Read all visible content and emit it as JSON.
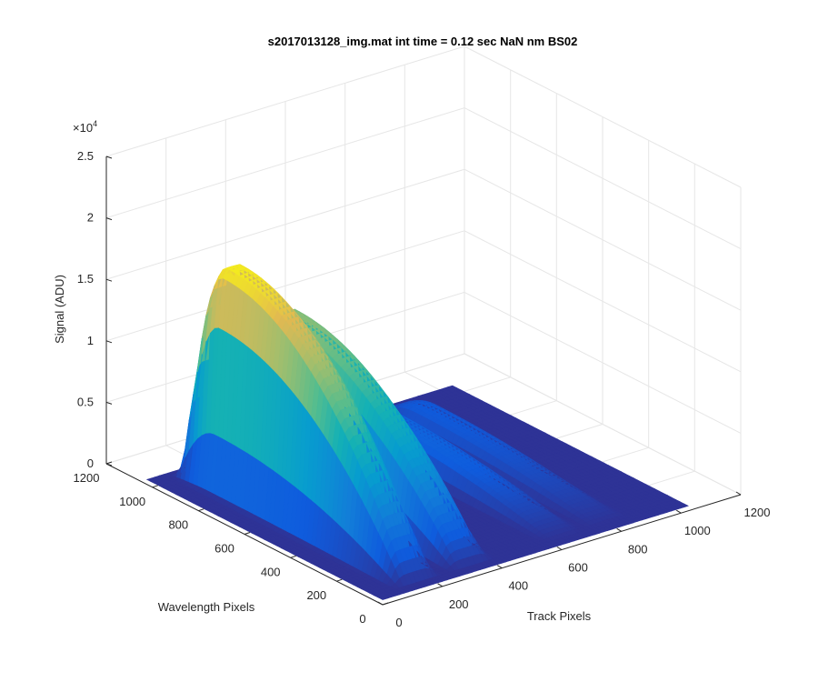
{
  "chart_data": {
    "type": "surface",
    "title": "s2017013128_img.mat int time = 0.12 sec  NaN nm BS02",
    "xlabel": "Track Pixels",
    "ylabel": "Wavelength Pixels",
    "zlabel": "Signal (ADU)",
    "zscale_label": "×10",
    "zscale_exp": "4",
    "xlim": [
      0,
      1200
    ],
    "ylim": [
      0,
      1200
    ],
    "zlim": [
      0,
      25000
    ],
    "x_ticks": [
      "0",
      "200",
      "400",
      "600",
      "800",
      "1000",
      "1200"
    ],
    "y_ticks": [
      "0",
      "200",
      "400",
      "600",
      "800",
      "1000",
      "1200"
    ],
    "z_ticks": [
      "0",
      "0.5",
      "1",
      "1.5",
      "2",
      "2.5"
    ],
    "x_extent": [
      0,
      1024
    ],
    "y_extent": [
      0,
      1024
    ],
    "colormap": "parula",
    "grid": true,
    "peaks": [
      {
        "track_center": 150,
        "track_width": 55,
        "max_signal": 18000
      },
      {
        "track_center": 330,
        "track_width": 55,
        "max_signal": 13000
      },
      {
        "track_center": 640,
        "track_width": 50,
        "max_signal": 2600
      },
      {
        "track_center": 790,
        "track_width": 50,
        "max_signal": 1800
      }
    ],
    "wavelength_profile": {
      "start": 40,
      "end": 1000,
      "peak_at": 840
    }
  }
}
